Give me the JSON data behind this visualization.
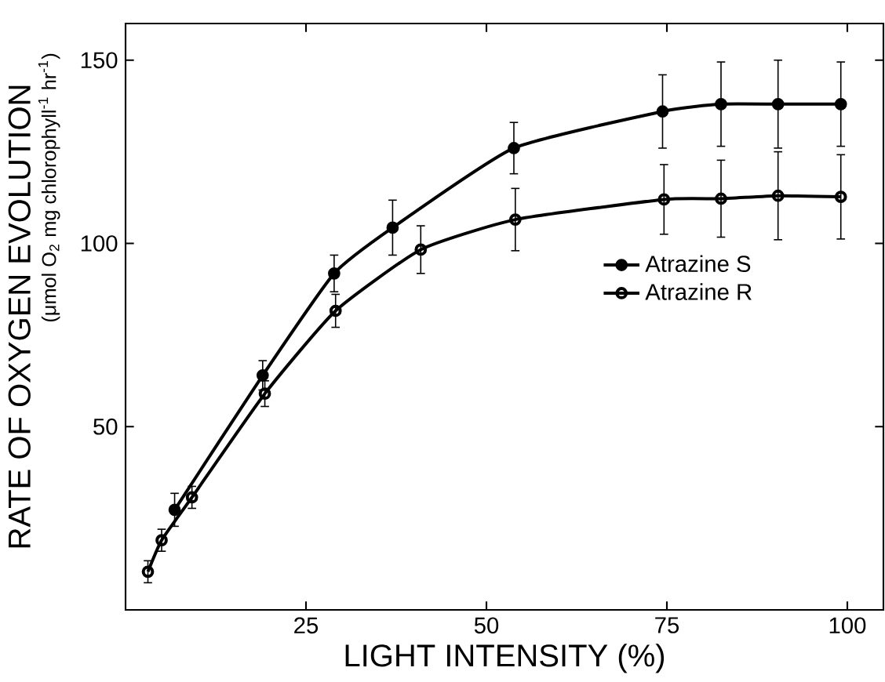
{
  "chart_data": {
    "type": "line",
    "xlabel": "LIGHT INTENSITY (%)",
    "ylabel": "RATE OF OXYGEN EVOLUTION",
    "annotations": [
      "(μmol O$_{2}$ mg chlorophyll$^{-1}$ hr$^{-1}$)"
    ],
    "xlim": [
      0,
      105
    ],
    "ylim": [
      0,
      160
    ],
    "xticks": [
      25,
      50,
      75,
      100
    ],
    "yticks": [
      50,
      100,
      150
    ],
    "legend": "right",
    "grid": false,
    "line_style": "solid",
    "series": [
      {
        "name": "Atrazine S",
        "color": "#000000",
        "marker": "circle",
        "x": [
          6.8,
          19,
          28.9,
          37,
          53.8,
          74.4,
          82.5,
          90.4,
          99.1
        ],
        "values": [
          27.3,
          64,
          91.8,
          104.3,
          126,
          136,
          138,
          138,
          138
        ],
        "errors": [
          4.5,
          4,
          5,
          7.5,
          7,
          10,
          11.5,
          12,
          11.5
        ]
      },
      {
        "name": "Atrazine R",
        "color": "#000000",
        "marker": "open circle",
        "x": [
          3.1,
          5,
          9.2,
          19.3,
          29.1,
          40.9,
          54,
          74.6,
          82.5,
          90.4,
          99.1
        ],
        "values": [
          10.4,
          19,
          30.7,
          59,
          81.6,
          98.3,
          106.5,
          112,
          112.2,
          113,
          112.7
        ],
        "errors": [
          3,
          3,
          3,
          3.5,
          4.5,
          6.5,
          8.5,
          9.5,
          10.5,
          12,
          11.5
        ]
      }
    ]
  }
}
